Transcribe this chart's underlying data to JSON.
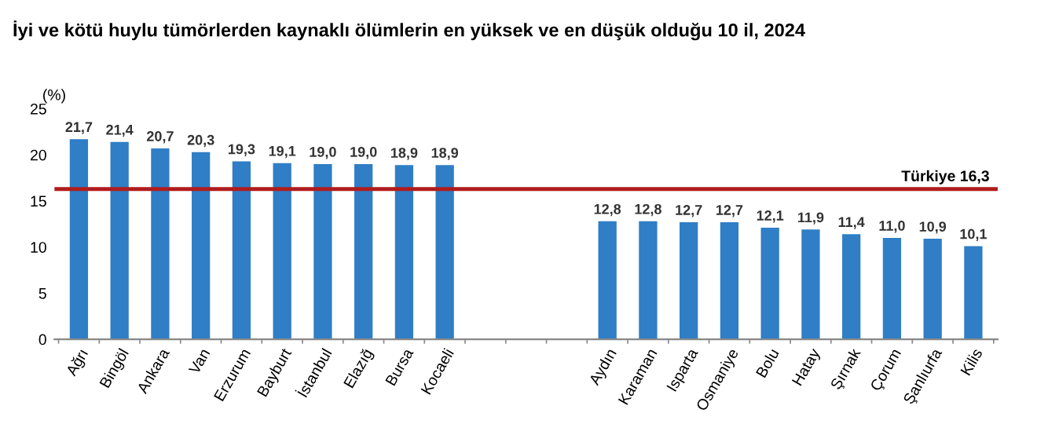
{
  "chart_data": {
    "type": "bar",
    "title": "İyi ve kötü huylu tümörlerden kaynaklı ölümlerin en yüksek ve en düşük olduğu 10 il, 2024",
    "ylabel": "(%)",
    "categories": [
      "Ağrı",
      "Bingöl",
      "Ankara",
      "Van",
      "Erzurum",
      "Bayburt",
      "İstanbul",
      "Elazığ",
      "Bursa",
      "Kocaeli",
      null,
      null,
      null,
      "Aydın",
      "Karaman",
      "Isparta",
      "Osmaniye",
      "Bolu",
      "Hatay",
      "Şırnak",
      "Çorum",
      "Şanlıurfa",
      "Kilis"
    ],
    "values": [
      21.7,
      21.4,
      20.7,
      20.3,
      19.3,
      19.1,
      19.0,
      19.0,
      18.9,
      18.9,
      null,
      null,
      null,
      12.8,
      12.8,
      12.7,
      12.7,
      12.1,
      11.9,
      11.4,
      11.0,
      10.9,
      10.1
    ],
    "value_labels": [
      "21,7",
      "21,4",
      "20,7",
      "20,3",
      "19,3",
      "19,1",
      "19,0",
      "19,0",
      "18,9",
      "18,9",
      null,
      null,
      null,
      "12,8",
      "12,8",
      "12,7",
      "12,7",
      "12,1",
      "11,9",
      "11,4",
      "11,0",
      "10,9",
      "10,1"
    ],
    "color": "#2f7ec6",
    "ylim": [
      0,
      25
    ],
    "yticks": [
      0,
      5,
      10,
      15,
      20,
      25
    ],
    "grid": false,
    "legend": false,
    "ref_lines": [
      {
        "axis": "y",
        "value": 16.3,
        "label": "Türkiye 16,3",
        "color": "#b01c1c",
        "line_style": "solid"
      }
    ]
  }
}
